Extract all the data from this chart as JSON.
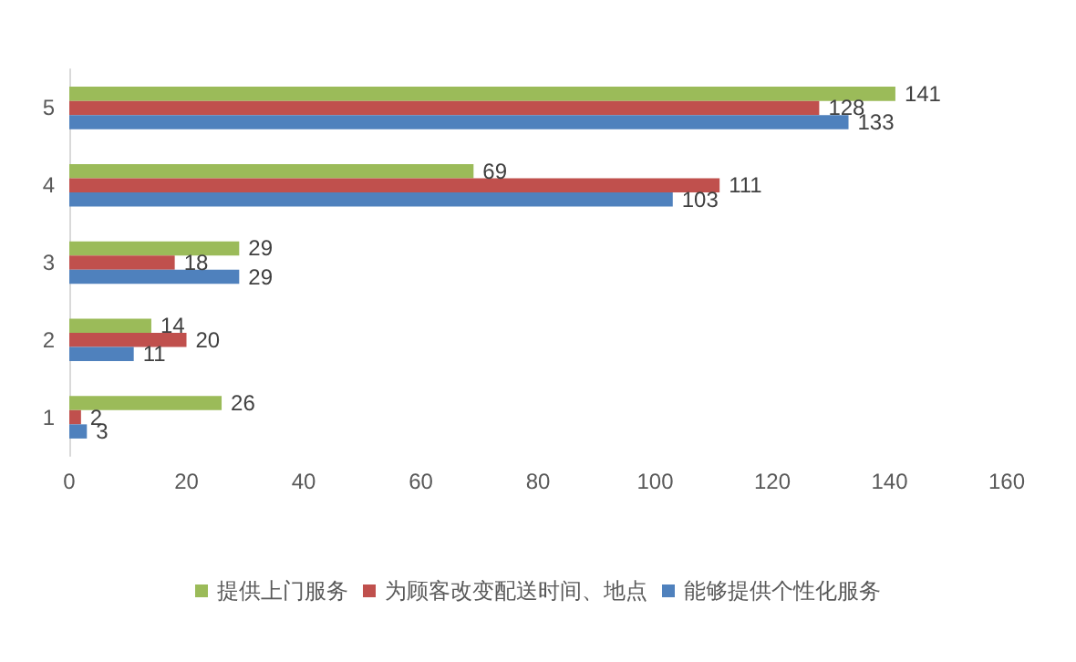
{
  "chart_data": {
    "type": "bar",
    "orientation": "horizontal",
    "categories": [
      "5",
      "4",
      "3",
      "2",
      "1"
    ],
    "series": [
      {
        "name": "提供上门服务",
        "color": "#9bbb59",
        "values": [
          141,
          69,
          29,
          14,
          26
        ]
      },
      {
        "name": "为顾客改变配送时间、地点",
        "color": "#c0504d",
        "values": [
          128,
          111,
          18,
          20,
          2
        ]
      },
      {
        "name": "能够提供个性化服务",
        "color": "#4f81bd",
        "values": [
          133,
          103,
          29,
          11,
          3
        ]
      }
    ],
    "xlim": [
      0,
      160
    ],
    "xticks": [
      0,
      20,
      40,
      60,
      80,
      100,
      120,
      140,
      160
    ],
    "grid": false,
    "legend": "bottom",
    "data_labels": true
  }
}
